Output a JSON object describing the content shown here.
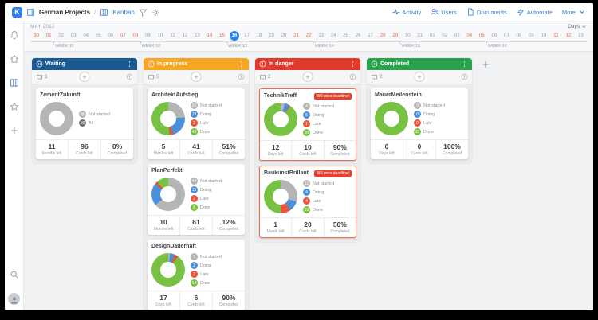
{
  "topbar": {
    "logo_text": "K",
    "board_title": "German Projects",
    "separator": "/",
    "view_label": "Kanban",
    "actions": [
      {
        "label": "Activity",
        "icon": "activity-icon"
      },
      {
        "label": "Users",
        "icon": "users-icon"
      },
      {
        "label": "Documents",
        "icon": "documents-icon"
      },
      {
        "label": "Automate",
        "icon": "automate-icon"
      },
      {
        "label": "More",
        "icon": "chevron-down-icon",
        "icon_position": "after"
      }
    ]
  },
  "sidebar": {
    "top_icons": [
      {
        "name": "notifications",
        "icon": "bell-icon",
        "active": false
      },
      {
        "name": "home",
        "icon": "home-icon",
        "active": false
      },
      {
        "name": "boards",
        "icon": "board-icon",
        "active": true
      },
      {
        "name": "favorites",
        "icon": "star-icon",
        "active": false
      },
      {
        "name": "add",
        "icon": "plus-icon",
        "active": false
      }
    ],
    "bottom_icons": [
      {
        "name": "search",
        "icon": "search-icon",
        "active": false
      }
    ]
  },
  "timeline": {
    "month": "MAY 2022",
    "range_label": "Days",
    "dates": [
      "30",
      "01",
      "02",
      "03",
      "04",
      "05",
      "06",
      "07",
      "08",
      "09",
      "10",
      "11",
      "12",
      "13",
      "14",
      "15",
      "16",
      "17",
      "18",
      "19",
      "20",
      "21",
      "22",
      "23",
      "24",
      "25",
      "26",
      "27",
      "28",
      "29",
      "30",
      "31",
      "01",
      "02",
      "03",
      "04",
      "05",
      "06",
      "07",
      "08",
      "09",
      "10",
      "11",
      "12",
      "13"
    ],
    "weekend_indices": [
      0,
      1,
      7,
      8,
      14,
      15,
      21,
      22,
      28,
      29,
      35,
      36,
      42,
      43
    ],
    "highlighted_date_index": 16,
    "weeks": [
      {
        "label": "WEEK 11",
        "index": 2
      },
      {
        "label": "WEEK 12",
        "index": 9
      },
      {
        "label": "WEEK 13",
        "index": 16
      },
      {
        "label": "WEEK 14",
        "index": 23
      },
      {
        "label": "WEEK 15",
        "index": 30
      },
      {
        "label": "WEEK 16",
        "index": 37
      }
    ]
  },
  "colors": {
    "accent": "#2f80ed",
    "danger_border": "#ef6a4c",
    "deadline_badge_bg": "#e8402a"
  },
  "status_colors": {
    "not_started": "#b5b5b5",
    "doing": "#4a90d9",
    "late": "#e8543a",
    "done": "#77c143",
    "all": "#707070"
  },
  "columns": [
    {
      "name": "Waiting",
      "color": "#1b5a91",
      "icon": "pause-circle-icon",
      "count": "1",
      "cards": [
        {
          "title": "ZementZukunft",
          "danger": false,
          "deadline_badge": "",
          "legend": [
            {
              "key": "not_started",
              "label": "Not started",
              "value": "96"
            },
            {
              "key": "all",
              "label": "All",
              "value": "96"
            }
          ],
          "stats": [
            {
              "value": "11",
              "label": "Months left"
            },
            {
              "value": "96",
              "label": "Cards left"
            },
            {
              "value": "0%",
              "label": "Completed"
            }
          ]
        }
      ]
    },
    {
      "name": "In progress",
      "color": "#f5a623",
      "icon": "play-circle-icon",
      "count": "5",
      "cards": [
        {
          "title": "ArchitektAufstieg",
          "danger": false,
          "deadline_badge": "",
          "legend": [
            {
              "key": "not_started",
              "label": "Not started",
              "value": "20"
            },
            {
              "key": "doing",
              "label": "Doing",
              "value": "18"
            },
            {
              "key": "late",
              "label": "Late",
              "value": "3"
            },
            {
              "key": "done",
              "label": "Done",
              "value": "43"
            }
          ],
          "stats": [
            {
              "value": "5",
              "label": "Months left"
            },
            {
              "value": "41",
              "label": "Cards left"
            },
            {
              "value": "51%",
              "label": "Completed"
            }
          ]
        },
        {
          "title": "PlanPerfekt",
          "danger": false,
          "deadline_badge": "",
          "legend": [
            {
              "key": "not_started",
              "label": "Not started",
              "value": "44"
            },
            {
              "key": "doing",
              "label": "Doing",
              "value": "15"
            },
            {
              "key": "late",
              "label": "Late",
              "value": "2"
            },
            {
              "key": "done",
              "label": "Done",
              "value": "8"
            }
          ],
          "stats": [
            {
              "value": "10",
              "label": "Months left"
            },
            {
              "value": "61",
              "label": "Cards left"
            },
            {
              "value": "12%",
              "label": "Completed"
            }
          ]
        },
        {
          "title": "DesignDauerhaft",
          "danger": false,
          "deadline_badge": "",
          "legend": [
            {
              "key": "not_started",
              "label": "Not started",
              "value": "1"
            },
            {
              "key": "doing",
              "label": "Doing",
              "value": "3"
            },
            {
              "key": "late",
              "label": "Late",
              "value": "2"
            },
            {
              "key": "done",
              "label": "Done",
              "value": "54"
            }
          ],
          "stats": [
            {
              "value": "17",
              "label": "Days left"
            },
            {
              "value": "6",
              "label": "Cards left"
            },
            {
              "value": "90%",
              "label": "Completed"
            }
          ]
        }
      ]
    },
    {
      "name": "In danger",
      "color": "#e0392e",
      "icon": "alert-circle-icon",
      "count": "2",
      "cards": [
        {
          "title": "TechnikTreff",
          "danger": true,
          "deadline_badge": "Will miss deadline!",
          "legend": [
            {
              "key": "not_started",
              "label": "Not started",
              "value": "4"
            },
            {
              "key": "doing",
              "label": "Doing",
              "value": "5"
            },
            {
              "key": "late",
              "label": "Late",
              "value": "1"
            },
            {
              "key": "done",
              "label": "Done",
              "value": "90"
            }
          ],
          "stats": [
            {
              "value": "12",
              "label": "Days left"
            },
            {
              "value": "10",
              "label": "Cards left"
            },
            {
              "value": "90%",
              "label": "Completed"
            }
          ]
        },
        {
          "title": "BaukunstBrillant",
          "danger": true,
          "deadline_badge": "Will miss deadline!",
          "legend": [
            {
              "key": "not_started",
              "label": "Not started",
              "value": "12"
            },
            {
              "key": "doing",
              "label": "Doing",
              "value": "4"
            },
            {
              "key": "late",
              "label": "Late",
              "value": "4"
            },
            {
              "key": "done",
              "label": "Done",
              "value": "20"
            }
          ],
          "stats": [
            {
              "value": "1",
              "label": "Month left"
            },
            {
              "value": "20",
              "label": "Cards left"
            },
            {
              "value": "50%",
              "label": "Completed"
            }
          ]
        }
      ]
    },
    {
      "name": "Completed",
      "color": "#2aa14d",
      "icon": "play-circle-icon",
      "count": "2",
      "cards": [
        {
          "title": "MauerMeilenstein",
          "danger": false,
          "deadline_badge": "",
          "legend": [
            {
              "key": "not_started",
              "label": "Not started",
              "value": "0"
            },
            {
              "key": "doing",
              "label": "Doing",
              "value": "0"
            },
            {
              "key": "late",
              "label": "Late",
              "value": "0"
            },
            {
              "key": "done",
              "label": "Done",
              "value": "31"
            }
          ],
          "stats": [
            {
              "value": "0",
              "label": "Days left"
            },
            {
              "value": "0",
              "label": "Cards left"
            },
            {
              "value": "100%",
              "label": "Completed"
            }
          ]
        }
      ]
    }
  ]
}
